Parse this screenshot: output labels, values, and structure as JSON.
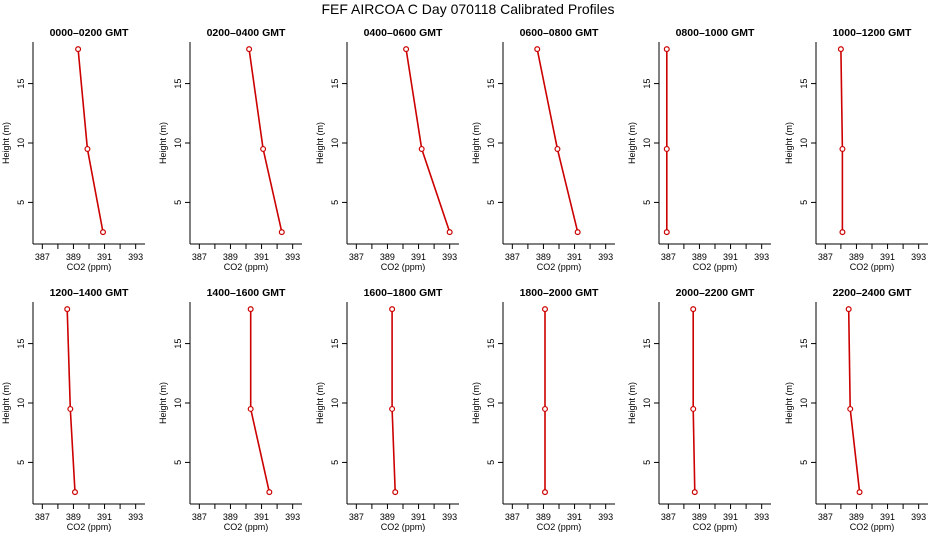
{
  "title": "FEF AIRCOA C  Day 070118  Calibrated Profiles",
  "chart_data": {
    "type": "line",
    "title": "FEF AIRCOA C  Day 070118  Calibrated Profiles",
    "xlabel": "CO2 (ppm)",
    "ylabel": "Height (m)",
    "xlim": [
      386.4,
      393.6
    ],
    "ylim": [
      1.5,
      18.5
    ],
    "xticks": [
      "387",
      "389",
      "391",
      "393"
    ],
    "yticks": [
      "5",
      "10",
      "15"
    ],
    "line_color": "#cc0000",
    "panels": [
      {
        "title": "0000–0200 GMT",
        "points": [
          {
            "co2": 389.3,
            "height": 17.9
          },
          {
            "co2": 389.9,
            "height": 9.5
          },
          {
            "co2": 390.9,
            "height": 2.5
          }
        ]
      },
      {
        "title": "0200–0400 GMT",
        "points": [
          {
            "co2": 390.2,
            "height": 17.9
          },
          {
            "co2": 391.1,
            "height": 9.5
          },
          {
            "co2": 392.3,
            "height": 2.5
          }
        ]
      },
      {
        "title": "0400–0600 GMT",
        "points": [
          {
            "co2": 390.2,
            "height": 17.9
          },
          {
            "co2": 391.2,
            "height": 9.5
          },
          {
            "co2": 393.0,
            "height": 2.5
          }
        ]
      },
      {
        "title": "0600–0800 GMT",
        "points": [
          {
            "co2": 388.6,
            "height": 17.9
          },
          {
            "co2": 389.9,
            "height": 9.5
          },
          {
            "co2": 391.2,
            "height": 2.5
          }
        ]
      },
      {
        "title": "0800–1000 GMT",
        "points": [
          {
            "co2": 386.9,
            "height": 17.9
          },
          {
            "co2": 386.9,
            "height": 9.5
          },
          {
            "co2": 386.9,
            "height": 2.5
          }
        ]
      },
      {
        "title": "1000–1200 GMT",
        "points": [
          {
            "co2": 388.0,
            "height": 17.9
          },
          {
            "co2": 388.1,
            "height": 9.5
          },
          {
            "co2": 388.1,
            "height": 2.5
          }
        ]
      },
      {
        "title": "1200–1400 GMT",
        "points": [
          {
            "co2": 388.6,
            "height": 17.9
          },
          {
            "co2": 388.8,
            "height": 9.5
          },
          {
            "co2": 389.1,
            "height": 2.5
          }
        ]
      },
      {
        "title": "1400–1600 GMT",
        "points": [
          {
            "co2": 390.3,
            "height": 17.9
          },
          {
            "co2": 390.3,
            "height": 9.5
          },
          {
            "co2": 391.5,
            "height": 2.5
          }
        ]
      },
      {
        "title": "1600–1800 GMT",
        "points": [
          {
            "co2": 389.3,
            "height": 17.9
          },
          {
            "co2": 389.3,
            "height": 9.5
          },
          {
            "co2": 389.5,
            "height": 2.5
          }
        ]
      },
      {
        "title": "1800–2000 GMT",
        "points": [
          {
            "co2": 389.1,
            "height": 17.9
          },
          {
            "co2": 389.1,
            "height": 9.5
          },
          {
            "co2": 389.1,
            "height": 2.5
          }
        ]
      },
      {
        "title": "2000–2200 GMT",
        "points": [
          {
            "co2": 388.6,
            "height": 17.9
          },
          {
            "co2": 388.6,
            "height": 9.5
          },
          {
            "co2": 388.7,
            "height": 2.5
          }
        ]
      },
      {
        "title": "2200–2400 GMT",
        "points": [
          {
            "co2": 388.5,
            "height": 17.9
          },
          {
            "co2": 388.6,
            "height": 9.5
          },
          {
            "co2": 389.2,
            "height": 2.5
          }
        ]
      }
    ]
  }
}
